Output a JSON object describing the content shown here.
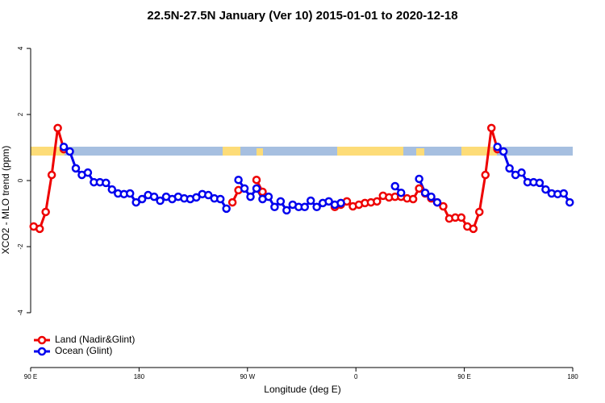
{
  "chart_data": {
    "type": "line",
    "title": "22.5N-27.5N January (Ver 10)   2015-01-01 to 2020-12-18",
    "x_label": "Longitude (deg E)",
    "y_label": "XCO2 - MLO trend (ppm)",
    "xlim": [
      90,
      540
    ],
    "ylim": [
      -5.66,
      4.49
    ],
    "xticks": [
      {
        "value": 90,
        "label": "90 E"
      },
      180,
      {
        "value": 270,
        "label": "90 W"
      },
      {
        "value": 360,
        "label": "0"
      },
      {
        "value": 450,
        "label": "90 E"
      },
      {
        "value": 540,
        "label": "180"
      }
    ],
    "yticks": [
      -4,
      -2,
      0,
      2,
      4
    ],
    "legend": "bottom-left",
    "x": [
      92.5,
      97.5,
      102.5,
      107.5,
      112.5,
      117.5,
      122.5,
      127.5,
      132.5,
      137.5,
      142.5,
      147.5,
      152.5,
      157.5,
      162.5,
      167.5,
      172.5,
      177.5,
      182.5,
      187.5,
      192.5,
      197.5,
      202.5,
      207.5,
      212.5,
      217.5,
      222.5,
      227.5,
      232.5,
      237.5,
      242.5,
      247.5,
      252.5,
      257.5,
      262.5,
      267.5,
      272.5,
      277.5,
      282.5,
      287.5,
      292.5,
      297.5,
      302.5,
      307.5,
      312.5,
      317.5,
      322.5,
      327.5,
      332.5,
      337.5,
      342.5,
      347.5,
      352.5,
      357.5,
      362.5,
      367.5,
      372.5,
      377.5,
      382.5,
      387.5,
      392.5,
      397.5,
      402.5,
      407.5,
      412.5,
      417.5,
      422.5,
      427.5,
      432.5,
      437.5,
      442.5,
      447.5,
      452.5,
      457.5,
      462.5,
      467.5,
      472.5,
      477.5,
      482.5,
      487.5,
      492.5,
      497.5,
      502.5,
      507.5,
      512.5,
      517.5,
      522.5,
      527.5,
      532.5,
      537.5
    ],
    "series": [
      {
        "name": "Land (Nadir&Glint)",
        "color": "#ee0000",
        "values": [
          -1.39,
          -1.46,
          -0.95,
          0.17,
          1.59,
          0.95,
          null,
          null,
          null,
          null,
          null,
          null,
          null,
          null,
          null,
          null,
          null,
          null,
          null,
          null,
          null,
          null,
          null,
          null,
          null,
          null,
          null,
          null,
          null,
          null,
          null,
          null,
          null,
          -0.66,
          -0.29,
          null,
          null,
          0.02,
          -0.34,
          null,
          null,
          null,
          null,
          null,
          null,
          null,
          null,
          null,
          null,
          null,
          -0.8,
          -0.73,
          -0.63,
          -0.78,
          -0.73,
          -0.68,
          -0.66,
          -0.63,
          -0.46,
          -0.51,
          -0.49,
          -0.49,
          -0.54,
          -0.56,
          -0.24,
          -0.39,
          -0.54,
          -0.66,
          -0.78,
          -1.15,
          -1.12,
          -1.12,
          -1.39,
          -1.46,
          -0.95,
          0.17,
          1.59,
          0.95,
          null,
          null,
          null,
          null,
          null,
          null,
          null,
          null,
          null,
          null,
          null,
          null
        ]
      },
      {
        "name": "Ocean (Glint)",
        "color": "#0000ee",
        "values": [
          null,
          null,
          null,
          null,
          null,
          1.02,
          0.88,
          0.37,
          0.17,
          0.24,
          -0.05,
          -0.05,
          -0.07,
          -0.27,
          -0.39,
          -0.41,
          -0.39,
          -0.66,
          -0.56,
          -0.44,
          -0.49,
          -0.61,
          -0.49,
          -0.56,
          -0.49,
          -0.54,
          -0.56,
          -0.51,
          -0.41,
          -0.44,
          -0.54,
          -0.56,
          -0.85,
          null,
          0.02,
          -0.24,
          -0.49,
          -0.24,
          -0.56,
          -0.49,
          -0.8,
          -0.63,
          -0.9,
          -0.73,
          -0.8,
          -0.8,
          -0.61,
          -0.8,
          -0.68,
          -0.63,
          -0.73,
          -0.68,
          null,
          null,
          null,
          null,
          null,
          null,
          null,
          null,
          -0.17,
          -0.37,
          null,
          null,
          0.05,
          -0.37,
          -0.49,
          -0.66,
          null,
          null,
          null,
          null,
          null,
          null,
          null,
          null,
          null,
          1.02,
          0.88,
          0.37,
          0.17,
          0.24,
          -0.05,
          -0.05,
          -0.07,
          -0.27,
          -0.39,
          -0.41,
          -0.39,
          -0.66
        ]
      }
    ]
  }
}
